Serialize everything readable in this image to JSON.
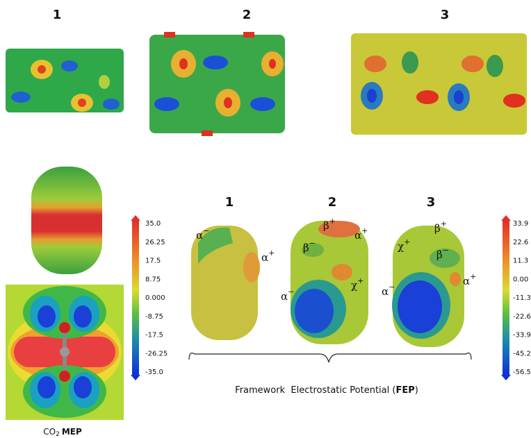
{
  "top_panels": {
    "labels": [
      "1",
      "2",
      "3"
    ]
  },
  "mep": {
    "colorbar": {
      "ticks": [
        "35.0",
        "26.25",
        "17.5",
        "8.75",
        "0.000",
        "-8.75",
        "-17.5",
        "-26.25",
        "-35.0"
      ]
    },
    "caption": {
      "molecule": "CO",
      "subscript": "2",
      "method": "MEP"
    }
  },
  "fep": {
    "labels": [
      "1",
      "2",
      "3"
    ],
    "colorbar": {
      "ticks": [
        "33.9",
        "22.6",
        "11.3",
        "0.00",
        "-11.3",
        "-22.6",
        "-33.9",
        "-45.2",
        "-56.5"
      ]
    },
    "annotations": [
      [
        {
          "symbol": "α",
          "sign": "−"
        },
        {
          "symbol": "α",
          "sign": "+"
        }
      ],
      [
        {
          "symbol": "β",
          "sign": "+"
        },
        {
          "symbol": "α",
          "sign": "+"
        },
        {
          "symbol": "β",
          "sign": "−"
        },
        {
          "symbol": "χ",
          "sign": "+"
        },
        {
          "symbol": "α",
          "sign": "−"
        }
      ],
      [
        {
          "symbol": "β",
          "sign": "+"
        },
        {
          "symbol": "χ",
          "sign": "+"
        },
        {
          "symbol": "β",
          "sign": "−"
        },
        {
          "symbol": "α",
          "sign": "+"
        },
        {
          "symbol": "α",
          "sign": "−"
        }
      ]
    ],
    "caption": {
      "prefix": "Framework  Electrostatic Potential (",
      "abbreviation": "FEP",
      "suffix": ")"
    }
  }
}
